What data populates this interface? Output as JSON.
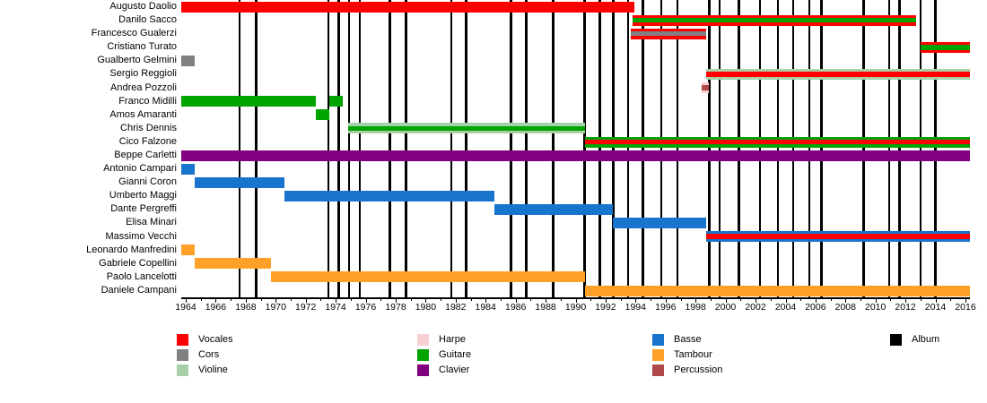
{
  "colors": {
    "vocales": "#FF0000",
    "cors": "#808080",
    "violine": "#A8D0A8",
    "harpe": "#F7D0D3",
    "guitare": "#00A400",
    "clavier": "#800080",
    "basse": "#1874CD",
    "tambour": "#FFA028",
    "percussion": "#B04A4A",
    "album": "#000000"
  },
  "chart_data": {
    "type": "timeline",
    "x_axis": {
      "domain_start": 1963.7,
      "domain_end": 2016.3,
      "tick_step_labeled": 2,
      "tick_step_minor": 1,
      "tick_labels": [
        "1964",
        "1966",
        "1968",
        "1970",
        "1972",
        "1974",
        "1976",
        "1978",
        "1980",
        "1982",
        "1984",
        "1986",
        "1988",
        "1990",
        "1992",
        "1994",
        "1996",
        "1998",
        "2000",
        "2002",
        "2004",
        "2006",
        "2008",
        "2010",
        "2012",
        "2014",
        "2016"
      ]
    },
    "members": [
      {
        "name": "Augusto Daolio",
        "stripes": [
          "vocales"
        ],
        "segments": [
          {
            "start": 1963.7,
            "end": 1993.9
          }
        ]
      },
      {
        "name": "Danilo Sacco",
        "stripes": [
          "vocales",
          "guitare",
          "vocales"
        ],
        "segments": [
          {
            "start": 1993.8,
            "end": 2012.7
          }
        ]
      },
      {
        "name": "Francesco Gualerzi",
        "stripes": [
          "vocales",
          "cors",
          "vocales"
        ],
        "segments": [
          {
            "start": 1993.7,
            "end": 1998.7
          }
        ]
      },
      {
        "name": "Cristiano Turato",
        "stripes": [
          "vocales",
          "guitare",
          "vocales"
        ],
        "segments": [
          {
            "start": 2013.0,
            "end": 2016.3
          }
        ]
      },
      {
        "name": "Gualberto Gelmini",
        "stripes": [
          "cors"
        ],
        "segments": [
          {
            "start": 1963.7,
            "end": 1964.6
          }
        ]
      },
      {
        "name": "Sergio Reggioli",
        "stripes": [
          "violine",
          "vocales",
          "violine"
        ],
        "segments": [
          {
            "start": 1998.7,
            "end": 2016.3
          }
        ]
      },
      {
        "name": "Andrea Pozzoli",
        "stripes": [
          "harpe",
          "percussion",
          "harpe"
        ],
        "segments": [
          {
            "start": 1998.4,
            "end": 1998.9
          }
        ]
      },
      {
        "name": "Franco Midilli",
        "stripes": [
          "guitare"
        ],
        "segments": [
          {
            "start": 1963.7,
            "end": 1972.7
          },
          {
            "start": 1973.6,
            "end": 1974.5
          }
        ]
      },
      {
        "name": "Amos Amaranti",
        "stripes": [
          "guitare"
        ],
        "segments": [
          {
            "start": 1972.7,
            "end": 1973.6
          }
        ]
      },
      {
        "name": "Chris Dennis",
        "stripes": [
          "violine",
          "guitare",
          "violine"
        ],
        "segments": [
          {
            "start": 1974.8,
            "end": 1990.6
          }
        ]
      },
      {
        "name": "Cico Falzone",
        "stripes": [
          "guitare",
          "vocales",
          "guitare"
        ],
        "segments": [
          {
            "start": 1990.6,
            "end": 2016.3
          }
        ]
      },
      {
        "name": "Beppe Carletti",
        "stripes": [
          "clavier"
        ],
        "segments": [
          {
            "start": 1963.7,
            "end": 2016.3
          }
        ]
      },
      {
        "name": "Antonio Campari",
        "stripes": [
          "basse"
        ],
        "segments": [
          {
            "start": 1963.7,
            "end": 1964.6
          }
        ]
      },
      {
        "name": "Gianni Coron",
        "stripes": [
          "basse"
        ],
        "segments": [
          {
            "start": 1964.6,
            "end": 1970.6
          }
        ]
      },
      {
        "name": "Umberto Maggi",
        "stripes": [
          "basse"
        ],
        "segments": [
          {
            "start": 1970.6,
            "end": 1984.6
          }
        ]
      },
      {
        "name": "Dante Pergreffi",
        "stripes": [
          "basse"
        ],
        "segments": [
          {
            "start": 1984.6,
            "end": 1992.5
          }
        ]
      },
      {
        "name": "Elisa Minari",
        "stripes": [
          "basse"
        ],
        "segments": [
          {
            "start": 1992.5,
            "end": 1998.7
          }
        ]
      },
      {
        "name": "Massimo Vecchi",
        "stripes": [
          "basse",
          "vocales",
          "basse"
        ],
        "segments": [
          {
            "start": 1998.7,
            "end": 2016.3
          }
        ]
      },
      {
        "name": "Leonardo Manfredini",
        "stripes": [
          "tambour"
        ],
        "segments": [
          {
            "start": 1963.7,
            "end": 1964.6
          }
        ]
      },
      {
        "name": "Gabriele Copellini",
        "stripes": [
          "tambour"
        ],
        "segments": [
          {
            "start": 1964.6,
            "end": 1969.7
          }
        ]
      },
      {
        "name": "Paolo Lancelotti",
        "stripes": [
          "tambour"
        ],
        "segments": [
          {
            "start": 1969.7,
            "end": 1990.6
          }
        ]
      },
      {
        "name": "Daniele Campani",
        "stripes": [
          "tambour"
        ],
        "segments": [
          {
            "start": 1990.6,
            "end": 2016.3
          }
        ]
      }
    ],
    "albums": [
      1967.6,
      1968.7,
      1973.5,
      1974.2,
      1974.9,
      1975.6,
      1977.6,
      1978.7,
      1981.7,
      1982.7,
      1985.7,
      1986.7,
      1988.5,
      1990.6,
      1991.6,
      1992.5,
      1993.5,
      1994.5,
      1995.7,
      1996.8,
      1998.9,
      1999.6,
      2000.9,
      2002.3,
      2003.5,
      2004.5,
      2005.6,
      2006.4,
      2009.2,
      2010.9,
      2011.6,
      2013.0,
      2014.0
    ],
    "legend": [
      {
        "label": "Vocales",
        "color": "vocales",
        "col": 0,
        "row": 0
      },
      {
        "label": "Cors",
        "color": "cors",
        "col": 0,
        "row": 1
      },
      {
        "label": "Violine",
        "color": "violine",
        "col": 0,
        "row": 2
      },
      {
        "label": "Harpe",
        "color": "harpe",
        "col": 1,
        "row": 0
      },
      {
        "label": "Guitare",
        "color": "guitare",
        "col": 1,
        "row": 1
      },
      {
        "label": "Clavier",
        "color": "clavier",
        "col": 1,
        "row": 2
      },
      {
        "label": "Basse",
        "color": "basse",
        "col": 2,
        "row": 0
      },
      {
        "label": "Tambour",
        "color": "tambour",
        "col": 2,
        "row": 1
      },
      {
        "label": "Percussion",
        "color": "percussion",
        "col": 2,
        "row": 2
      },
      {
        "label": "Album",
        "color": "album",
        "col": 3,
        "row": 0
      }
    ]
  }
}
